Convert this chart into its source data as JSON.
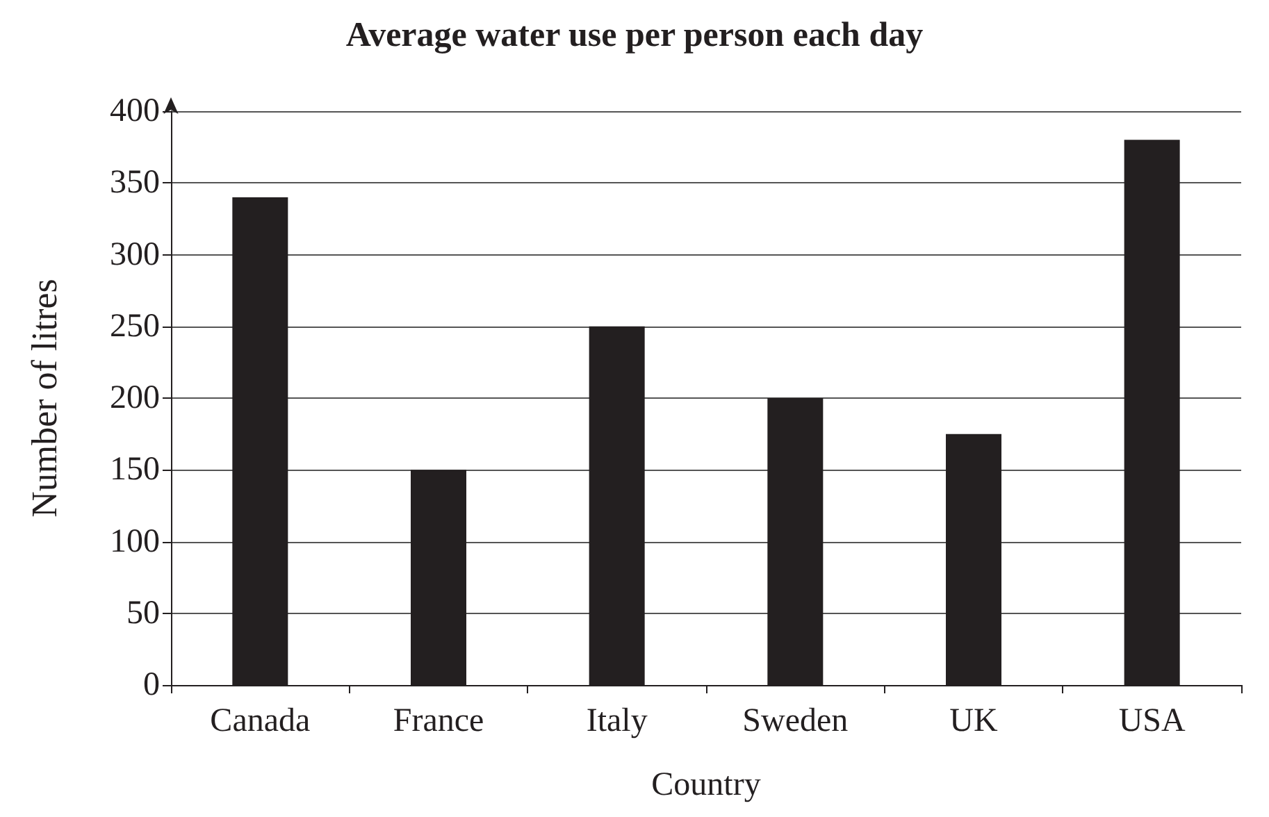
{
  "chart_data": {
    "type": "bar",
    "title": "Average water use per person each day",
    "xlabel": "Country",
    "ylabel": "Number of litres",
    "categories": [
      "Canada",
      "France",
      "Italy",
      "Sweden",
      "UK",
      "USA"
    ],
    "values": [
      340,
      150,
      250,
      200,
      175,
      380
    ],
    "color": "#231f20",
    "ylim": [
      0,
      400
    ],
    "yticks": [
      0,
      50,
      100,
      150,
      200,
      250,
      300,
      350,
      400
    ],
    "grid": "y"
  }
}
